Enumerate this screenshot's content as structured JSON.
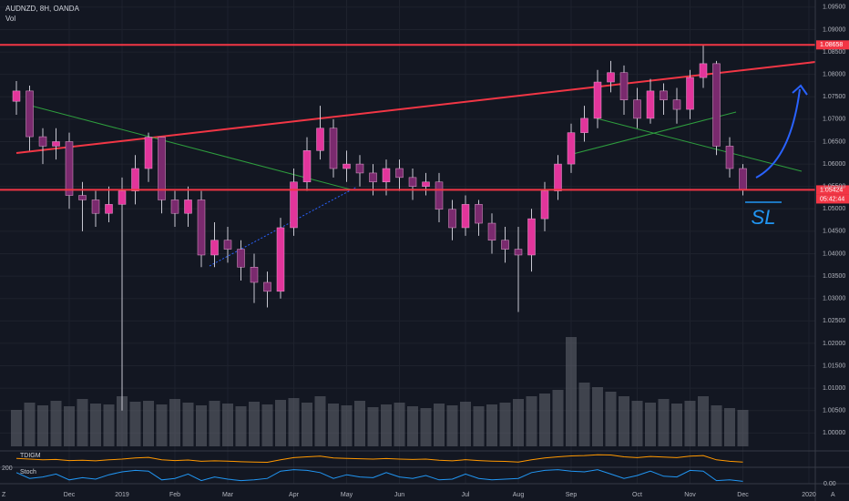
{
  "header": {
    "symbol": "AUDNZD, 8H, OANDA",
    "volume_label": "Vol"
  },
  "chart_data": {
    "type": "candlestick",
    "categories": [
      null,
      null,
      null,
      null,
      "Dec",
      null,
      null,
      null,
      "2019",
      null,
      null,
      null,
      "Feb",
      null,
      null,
      null,
      "Mar",
      null,
      null,
      null,
      null,
      "Apr",
      null,
      null,
      null,
      "May",
      null,
      null,
      null,
      "Jun",
      null,
      null,
      null,
      null,
      "Jul",
      null,
      null,
      null,
      "Aug",
      null,
      null,
      null,
      "Sep",
      null,
      null,
      null,
      null,
      "Oct",
      null,
      null,
      null,
      "Nov",
      null,
      null,
      null,
      "Dec",
      null,
      null,
      null,
      null,
      "2020"
    ],
    "open": [
      1.074,
      1.0763,
      1.0661,
      1.064,
      1.065,
      1.053,
      1.052,
      1.049,
      1.051,
      1.054,
      1.059,
      1.066,
      1.052,
      1.049,
      1.052,
      1.0397,
      1.043,
      1.041,
      1.037,
      1.0336,
      1.0316,
      1.0458,
      1.056,
      1.063,
      1.068,
      1.059,
      1.06,
      1.058,
      1.056,
      1.059,
      1.057,
      1.055,
      1.056,
      1.0499,
      1.0458,
      1.051,
      1.0468,
      1.043,
      1.041,
      1.0397,
      1.0478,
      1.054,
      1.06,
      1.067,
      1.0702,
      1.0783,
      1.0804,
      1.0743,
      1.0702,
      1.0763,
      1.0743,
      1.0722,
      1.0793,
      1.0824,
      1.064,
      1.059,
      null,
      null,
      null,
      null,
      null
    ],
    "high": [
      1.0785,
      1.0775,
      1.068,
      1.068,
      1.067,
      1.056,
      1.054,
      1.055,
      1.057,
      1.062,
      1.067,
      1.066,
      1.054,
      1.055,
      1.054,
      1.047,
      1.046,
      1.043,
      1.04,
      1.036,
      1.048,
      1.059,
      1.066,
      1.073,
      1.07,
      1.063,
      1.062,
      1.06,
      1.061,
      1.061,
      1.059,
      1.058,
      1.058,
      1.052,
      1.053,
      1.052,
      1.049,
      1.046,
      1.046,
      1.05,
      1.056,
      1.062,
      1.069,
      1.073,
      1.081,
      1.083,
      1.082,
      1.077,
      1.079,
      1.078,
      1.077,
      1.081,
      1.0866,
      1.083,
      1.066,
      1.06,
      null,
      null,
      null,
      null,
      null
    ],
    "low": [
      1.071,
      1.063,
      1.06,
      1.061,
      1.05,
      1.045,
      1.046,
      1.047,
      1.005,
      1.051,
      1.056,
      1.049,
      1.046,
      1.046,
      1.037,
      1.037,
      1.038,
      1.034,
      1.029,
      1.028,
      1.03,
      1.044,
      1.054,
      1.061,
      1.057,
      1.056,
      1.055,
      1.053,
      1.053,
      1.054,
      1.052,
      1.053,
      1.047,
      1.043,
      1.044,
      1.044,
      1.04,
      1.038,
      1.027,
      1.036,
      1.045,
      1.052,
      1.058,
      1.065,
      1.068,
      1.076,
      1.071,
      1.068,
      1.069,
      1.071,
      1.069,
      1.07,
      1.077,
      1.062,
      1.057,
      1.053,
      null,
      null,
      null,
      null,
      null
    ],
    "close": [
      1.0763,
      1.0661,
      1.064,
      1.065,
      1.053,
      1.052,
      1.049,
      1.051,
      1.054,
      1.059,
      1.066,
      1.052,
      1.049,
      1.052,
      1.0397,
      1.043,
      1.041,
      1.037,
      1.0336,
      1.0316,
      1.0458,
      1.056,
      1.063,
      1.068,
      1.059,
      1.06,
      1.058,
      1.056,
      1.059,
      1.057,
      1.055,
      1.056,
      1.0499,
      1.0458,
      1.051,
      1.0468,
      1.043,
      1.041,
      1.0397,
      1.0478,
      1.054,
      1.06,
      1.067,
      1.0702,
      1.0783,
      1.0804,
      1.0743,
      1.0702,
      1.0763,
      1.0743,
      1.0722,
      1.0793,
      1.0824,
      1.064,
      1.059,
      1.0542,
      null,
      null,
      null,
      null,
      null
    ],
    "up_color": "#e2359b",
    "down_color": "#7a2a6e",
    "ylim": [
      0.996,
      1.0966
    ],
    "yticks": [
      {
        "value": 1.095,
        "label": "1.09500"
      },
      {
        "value": 1.09,
        "label": "1.09000"
      },
      {
        "value": 1.085,
        "label": "1.08500"
      },
      {
        "value": 1.08,
        "label": "1.08000"
      },
      {
        "value": 1.075,
        "label": "1.07500"
      },
      {
        "value": 1.07,
        "label": "1.07000"
      },
      {
        "value": 1.065,
        "label": "1.06500"
      },
      {
        "value": 1.06,
        "label": "1.06000"
      },
      {
        "value": 1.055,
        "label": "1.05500"
      },
      {
        "value": 1.05,
        "label": "1.05000"
      },
      {
        "value": 1.045,
        "label": "1.04500"
      },
      {
        "value": 1.04,
        "label": "1.04000"
      },
      {
        "value": 1.035,
        "label": "1.03500"
      },
      {
        "value": 1.03,
        "label": "1.03000"
      },
      {
        "value": 1.025,
        "label": "1.02500"
      },
      {
        "value": 1.02,
        "label": "1.02000"
      },
      {
        "value": 1.015,
        "label": "1.01500"
      },
      {
        "value": 1.01,
        "label": "1.01000"
      },
      {
        "value": 1.005,
        "label": "1.00500"
      },
      {
        "value": 1.0,
        "label": "1.00000"
      }
    ],
    "hlines": [
      {
        "value": 1.08658,
        "color": "#f23645"
      },
      {
        "value": 1.05424,
        "color": "#f23645"
      }
    ],
    "countdown": "05:42:44",
    "volume": {
      "values": [
        40,
        48,
        45,
        50,
        44,
        52,
        47,
        46,
        55,
        49,
        50,
        46,
        52,
        48,
        45,
        50,
        47,
        44,
        49,
        46,
        51,
        53,
        48,
        55,
        47,
        45,
        50,
        43,
        46,
        48,
        44,
        42,
        47,
        45,
        49,
        44,
        46,
        48,
        52,
        55,
        58,
        62,
        120,
        70,
        65,
        60,
        55,
        50,
        48,
        52,
        47,
        50,
        55,
        45,
        42,
        40,
        null,
        null,
        null,
        null,
        null
      ],
      "ylim": [
        0,
        130
      ],
      "color": "#5d606b"
    }
  },
  "indicators": [
    {
      "name": "TDIGM",
      "values": [
        55,
        50,
        45,
        48,
        40,
        42,
        38,
        45,
        50,
        58,
        62,
        45,
        40,
        44,
        35,
        38,
        36,
        32,
        30,
        28,
        45,
        60,
        66,
        70,
        58,
        55,
        52,
        50,
        54,
        50,
        48,
        50,
        42,
        38,
        46,
        40,
        36,
        34,
        30,
        45,
        58,
        66,
        72,
        74,
        80,
        78,
        66,
        60,
        68,
        64,
        60,
        70,
        74,
        45,
        35,
        30,
        null,
        null,
        null,
        null,
        null
      ],
      "ylim": [
        0,
        100
      ],
      "color": "#ff9800"
    },
    {
      "name": "Stoch",
      "values": [
        70,
        30,
        40,
        60,
        20,
        35,
        25,
        55,
        75,
        85,
        80,
        20,
        30,
        60,
        15,
        40,
        25,
        15,
        20,
        30,
        80,
        90,
        85,
        70,
        30,
        55,
        40,
        35,
        70,
        40,
        30,
        50,
        20,
        25,
        60,
        30,
        20,
        25,
        30,
        70,
        85,
        90,
        80,
        75,
        90,
        60,
        30,
        50,
        80,
        45,
        40,
        85,
        80,
        15,
        20,
        10,
        null,
        null,
        null,
        null,
        null
      ],
      "ylim": [
        0,
        100
      ],
      "color": "#2196f3"
    }
  ],
  "side_labels": {
    "left_pane": "200",
    "left_axis": "Z",
    "right_pane": "0.00",
    "right_axis": "A"
  },
  "annotations": {
    "stop_loss": "SL"
  }
}
